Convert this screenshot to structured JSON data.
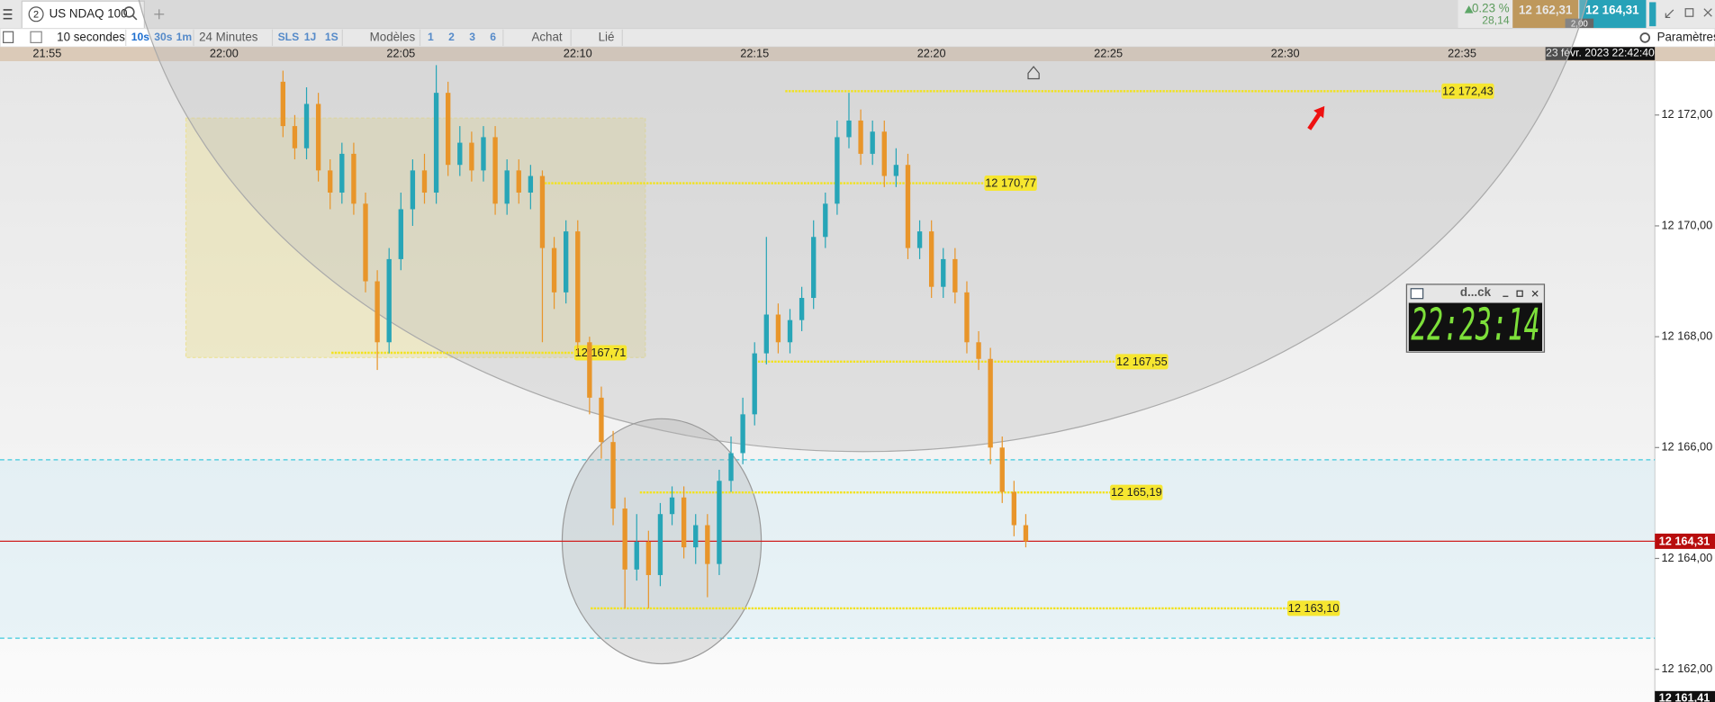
{
  "tab": {
    "number": "2",
    "title": "US NDAQ 100"
  },
  "ticker": {
    "change_pct": "0.23 %",
    "change_pts": "28,14",
    "bid": "12 162,31",
    "ask": "12 164,31",
    "spread": "2,00"
  },
  "toolbar": [
    "10 secondes",
    "10s",
    "30s",
    "1m",
    "24 Minutes",
    "SLS",
    "1J",
    "1S",
    "Modèles",
    "1",
    "2",
    "3",
    "6",
    "Achat",
    "Lié"
  ],
  "settings": "Paramètres",
  "clock": {
    "title": "d...ck",
    "time": "22:23:14"
  },
  "chart_data": {
    "type": "candlestick",
    "x": [
      "22:01:40",
      "22:02:00",
      "22:02:20",
      "22:02:40",
      "22:03:00",
      "22:03:20",
      "22:03:40",
      "22:04:00",
      "22:04:20",
      "22:04:40",
      "22:05:00",
      "22:05:20",
      "22:05:40",
      "22:06:00",
      "22:06:20",
      "22:06:40",
      "22:07:00",
      "22:07:20",
      "22:07:40",
      "22:08:00",
      "22:08:20",
      "22:08:40",
      "22:09:00",
      "22:09:20",
      "22:09:40",
      "22:10:00",
      "22:10:20",
      "22:10:40",
      "22:11:00",
      "22:11:20",
      "22:11:40",
      "22:12:00",
      "22:12:20",
      "22:12:40",
      "22:13:00",
      "22:13:20",
      "22:13:40",
      "22:14:00",
      "22:14:20",
      "22:14:40",
      "22:15:00",
      "22:15:20",
      "22:15:40",
      "22:16:00",
      "22:16:20",
      "22:16:40",
      "22:17:00",
      "22:17:20",
      "22:17:40",
      "22:18:00",
      "22:18:20",
      "22:18:40",
      "22:19:00",
      "22:19:20",
      "22:19:40",
      "22:20:00",
      "22:20:20",
      "22:20:40",
      "22:21:00",
      "22:21:20",
      "22:21:40",
      "22:22:00",
      "22:22:20",
      "22:22:40"
    ],
    "open": [
      12172.6,
      12171.8,
      12171.4,
      12172.2,
      12171.0,
      12170.6,
      12171.3,
      12170.4,
      12169.0,
      12167.9,
      12169.4,
      12170.3,
      12171.0,
      12170.6,
      12172.4,
      12171.1,
      12171.5,
      12171.0,
      12171.6,
      12170.4,
      12171.0,
      12170.6,
      12170.9,
      12169.6,
      12168.8,
      12169.9,
      12167.9,
      12166.9,
      12166.1,
      12164.9,
      12163.8,
      12164.3,
      12163.7,
      12164.8,
      12165.1,
      12164.2,
      12164.6,
      12163.9,
      12165.4,
      12165.9,
      12166.6,
      12167.7,
      12168.4,
      12167.9,
      12168.3,
      12168.7,
      12169.8,
      12170.4,
      12171.6,
      12171.9,
      12171.3,
      12171.7,
      12170.9,
      12171.1,
      12169.6,
      12169.9,
      12168.9,
      12169.4,
      12168.8,
      12167.9,
      12167.6,
      12166.0,
      12165.2,
      12164.6
    ],
    "high": [
      12172.8,
      12172.0,
      12172.5,
      12172.4,
      12171.2,
      12171.5,
      12171.5,
      12170.6,
      12169.2,
      12169.6,
      12170.6,
      12171.2,
      12171.3,
      12172.9,
      12172.6,
      12171.8,
      12171.7,
      12171.8,
      12171.8,
      12171.2,
      12171.2,
      12171.1,
      12171.0,
      12169.8,
      12170.1,
      12170.1,
      12168.0,
      12167.1,
      12166.3,
      12165.1,
      12164.8,
      12164.5,
      12165.0,
      12165.3,
      12165.3,
      12164.8,
      12164.8,
      12165.6,
      12166.2,
      12166.9,
      12167.9,
      12169.8,
      12168.6,
      12168.5,
      12168.9,
      12170.1,
      12170.6,
      12171.9,
      12172.4,
      12172.1,
      12171.9,
      12171.9,
      12171.4,
      12171.3,
      12170.1,
      12170.1,
      12169.6,
      12169.6,
      12169.0,
      12168.1,
      12167.8,
      12166.2,
      12165.4,
      12164.8
    ],
    "low": [
      12171.6,
      12171.2,
      12171.2,
      12170.8,
      12170.3,
      12170.4,
      12170.2,
      12168.8,
      12167.4,
      12167.7,
      12169.2,
      12170.0,
      12170.4,
      12170.4,
      12170.9,
      12170.9,
      12170.8,
      12170.8,
      12170.2,
      12170.2,
      12170.4,
      12170.3,
      12167.9,
      12168.5,
      12168.6,
      12167.7,
      12166.6,
      12165.8,
      12164.6,
      12163.1,
      12163.6,
      12163.1,
      12163.5,
      12164.6,
      12164.0,
      12163.9,
      12163.3,
      12163.7,
      12165.2,
      12165.7,
      12166.4,
      12167.5,
      12167.7,
      12167.7,
      12168.1,
      12168.5,
      12169.6,
      12170.2,
      12171.4,
      12171.1,
      12171.1,
      12170.7,
      12170.7,
      12169.4,
      12169.4,
      12168.7,
      12168.7,
      12168.6,
      12167.7,
      12167.4,
      12165.7,
      12165.0,
      12164.4,
      12164.2
    ],
    "close": [
      12171.8,
      12171.4,
      12172.2,
      12171.0,
      12170.6,
      12171.3,
      12170.4,
      12169.0,
      12167.9,
      12169.4,
      12170.3,
      12171.0,
      12170.6,
      12172.4,
      12171.1,
      12171.5,
      12171.0,
      12171.6,
      12170.4,
      12171.0,
      12170.6,
      12170.9,
      12169.6,
      12168.8,
      12169.9,
      12167.9,
      12166.9,
      12166.1,
      12164.9,
      12163.8,
      12164.3,
      12163.7,
      12164.8,
      12165.1,
      12164.2,
      12164.6,
      12163.9,
      12165.4,
      12165.9,
      12166.6,
      12167.7,
      12168.4,
      12167.9,
      12168.3,
      12168.7,
      12169.8,
      12170.4,
      12171.6,
      12171.9,
      12171.3,
      12171.7,
      12170.9,
      12171.1,
      12169.6,
      12169.9,
      12168.9,
      12169.4,
      12168.8,
      12167.9,
      12167.6,
      12166.0,
      12165.2,
      12164.6,
      12164.31
    ],
    "up_color": "#27a5b7",
    "down_color": "#e8952a",
    "xlim": [
      "21:53:40",
      "22:40:27"
    ],
    "xticks": [
      "21:55",
      "22:00",
      "22:05",
      "22:10",
      "22:15",
      "22:20",
      "22:25",
      "22:30",
      "22:35"
    ],
    "ylim": [
      12161.41,
      12172.97
    ],
    "yticks": [
      {
        "value": 12162,
        "label": "12 162,00"
      },
      {
        "value": 12164,
        "label": "12 164,00"
      },
      {
        "value": 12166,
        "label": "12 166,00"
      },
      {
        "value": 12168,
        "label": "12 168,00"
      },
      {
        "value": 12170,
        "label": "12 170,00"
      },
      {
        "value": 12172,
        "label": "12 172,00"
      }
    ],
    "levels": [
      {
        "value": 12172.43,
        "label": "12 172,43"
      },
      {
        "value": 12170.77,
        "label": "12 170,77"
      },
      {
        "value": 12167.71,
        "label": "12 167,71"
      },
      {
        "value": 12167.55,
        "label": "12 167,55"
      },
      {
        "value": 12165.19,
        "label": "12 165,19"
      },
      {
        "value": 12163.1,
        "label": "12 163,10"
      }
    ],
    "zone": [
      12162.56,
      12165.78
    ],
    "last_price": {
      "value": 12164.31,
      "label": "12 164,31"
    },
    "axis_bottom": {
      "value": 12161.41,
      "label": "12 161,41"
    },
    "timestamp": "23 févr. 2023 22:42:40"
  }
}
